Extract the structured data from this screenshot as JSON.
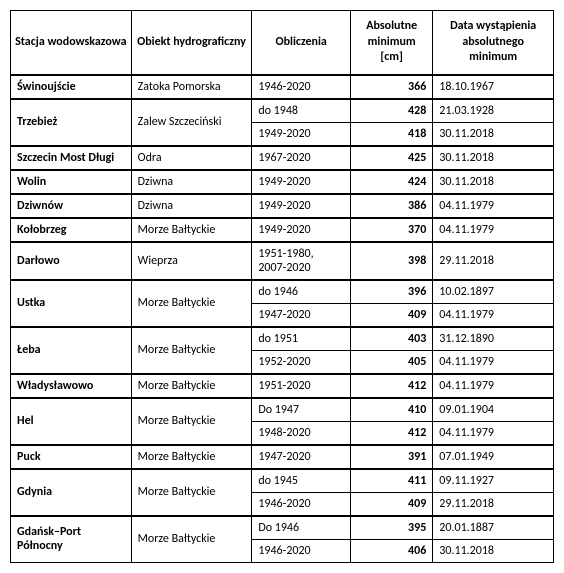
{
  "headers": {
    "station": "Stacja wodowskazowa",
    "object": "Obiekt hydrograficzny",
    "calc": "Obliczenia",
    "min": "Absolutne minimum [cm]",
    "date": "Data wystąpienia absolutnego minimum"
  },
  "rows": [
    {
      "station": "Świnoujście",
      "object": "Zatoka Pomorska",
      "calc": "1946-2020",
      "min": "366",
      "date": "18.10.1967",
      "spanStation": 1,
      "spanObject": 1,
      "group": true
    },
    {
      "station": "Trzebież",
      "object": "Zalew Szczeciński",
      "calc": "do 1948",
      "min": "428",
      "date": "21.03.1928",
      "spanStation": 2,
      "spanObject": 2,
      "group": true
    },
    {
      "calc": "1949-2020",
      "min": "418",
      "date": "30.11.2018"
    },
    {
      "station": "Szczecin Most Długi",
      "object": "Odra",
      "calc": "1967-2020",
      "min": "425",
      "date": "30.11.2018",
      "spanStation": 1,
      "spanObject": 1,
      "group": true
    },
    {
      "station": "Wolin",
      "object": "Dziwna",
      "calc": "1949-2020",
      "min": "424",
      "date": "30.11.2018",
      "spanStation": 1,
      "spanObject": 1,
      "group": true
    },
    {
      "station": "Dziwnów",
      "object": "Dziwna",
      "calc": "1949-2020",
      "min": "386",
      "date": "04.11.1979",
      "spanStation": 1,
      "spanObject": 1,
      "group": true
    },
    {
      "station": "Kołobrzeg",
      "object": "Morze Bałtyckie",
      "calc": "1949-2020",
      "min": "370",
      "date": "04.11.1979",
      "spanStation": 1,
      "spanObject": 1,
      "group": true
    },
    {
      "station": "Darłowo",
      "object": "Wieprza",
      "calc": "1951-1980, 2007-2020",
      "min": "398",
      "date": "29.11.2018",
      "spanStation": 1,
      "spanObject": 1,
      "group": true
    },
    {
      "station": "Ustka",
      "object": "Morze Bałtyckie",
      "calc": "do 1946",
      "min": "396",
      "date": "10.02.1897",
      "spanStation": 2,
      "spanObject": 2,
      "group": true
    },
    {
      "calc": "1947-2020",
      "min": "409",
      "date": "04.11.1979"
    },
    {
      "station": "Łeba",
      "object": "Morze Bałtyckie",
      "calc": "do 1951",
      "min": "403",
      "date": "31.12.1890",
      "spanStation": 2,
      "spanObject": 2,
      "group": true
    },
    {
      "calc": "1952-2020",
      "min": "405",
      "date": "04.11.1979"
    },
    {
      "station": "Władysławowo",
      "object": "Morze Bałtyckie",
      "calc": "1951-2020",
      "min": "412",
      "date": "04.11.1979",
      "spanStation": 1,
      "spanObject": 1,
      "group": true
    },
    {
      "station": "Hel",
      "object": "Morze Bałtyckie",
      "calc": "Do 1947",
      "min": "410",
      "date": "09.01.1904",
      "spanStation": 2,
      "spanObject": 2,
      "group": true
    },
    {
      "calc": "1948-2020",
      "min": "412",
      "date": "04.11.1979"
    },
    {
      "station": "Puck",
      "object": "Morze Bałtyckie",
      "calc": "1947-2020",
      "min": "391",
      "date": "07.01.1949",
      "spanStation": 1,
      "spanObject": 1,
      "group": true
    },
    {
      "station": "Gdynia",
      "object": "Morze Bałtyckie",
      "calc": "do 1945",
      "min": "411",
      "date": "09.11.1927",
      "spanStation": 2,
      "spanObject": 2,
      "group": true
    },
    {
      "calc": "1946-2020",
      "min": "409",
      "date": "29.11.2018"
    },
    {
      "station": "Gdańsk–Port Północny",
      "object": "Morze Bałtyckie",
      "calc": "Do 1946",
      "min": "395",
      "date": "20.01.1887",
      "spanStation": 2,
      "spanObject": 2,
      "group": true
    },
    {
      "calc": "1946-2020",
      "min": "406",
      "date": "30.11.2018"
    }
  ]
}
